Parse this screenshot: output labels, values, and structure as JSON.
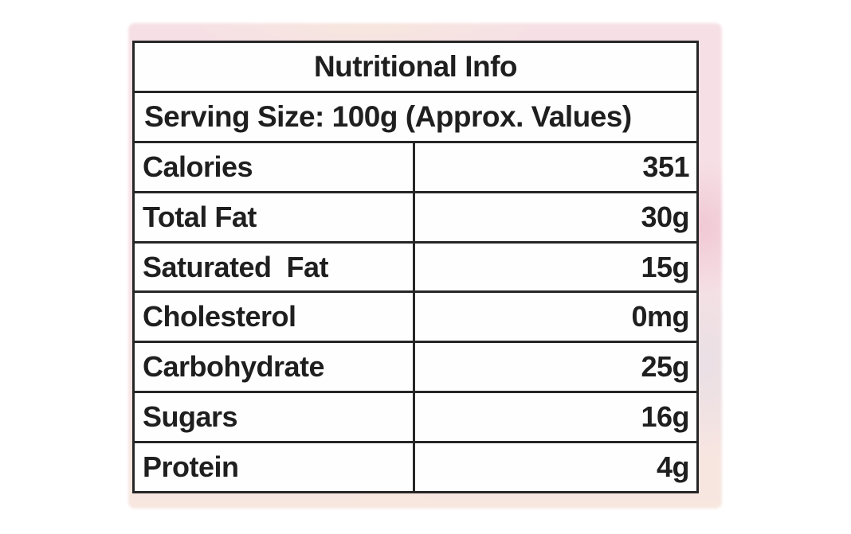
{
  "table": {
    "title": "Nutritional Info",
    "serving_line": "Serving Size: 100g (Approx. Values)",
    "rows": [
      {
        "label": "Calories",
        "value": "351"
      },
      {
        "label": "Total Fat",
        "value": "30g"
      },
      {
        "label": "Saturated  Fat",
        "value": "15g"
      },
      {
        "label": "Cholesterol",
        "value": "0mg"
      },
      {
        "label": "Carbohydrate",
        "value": "25g"
      },
      {
        "label": "Sugars",
        "value": "16g"
      },
      {
        "label": "Protein",
        "value": "4g"
      }
    ]
  },
  "colors": {
    "border": "#262626",
    "text": "#1f1f1f",
    "pink_soft": "#f6e0e5",
    "pink_strong": "#f0c8d4",
    "pink_gray": "#e9e0e5",
    "peach": "#f7e7df"
  }
}
